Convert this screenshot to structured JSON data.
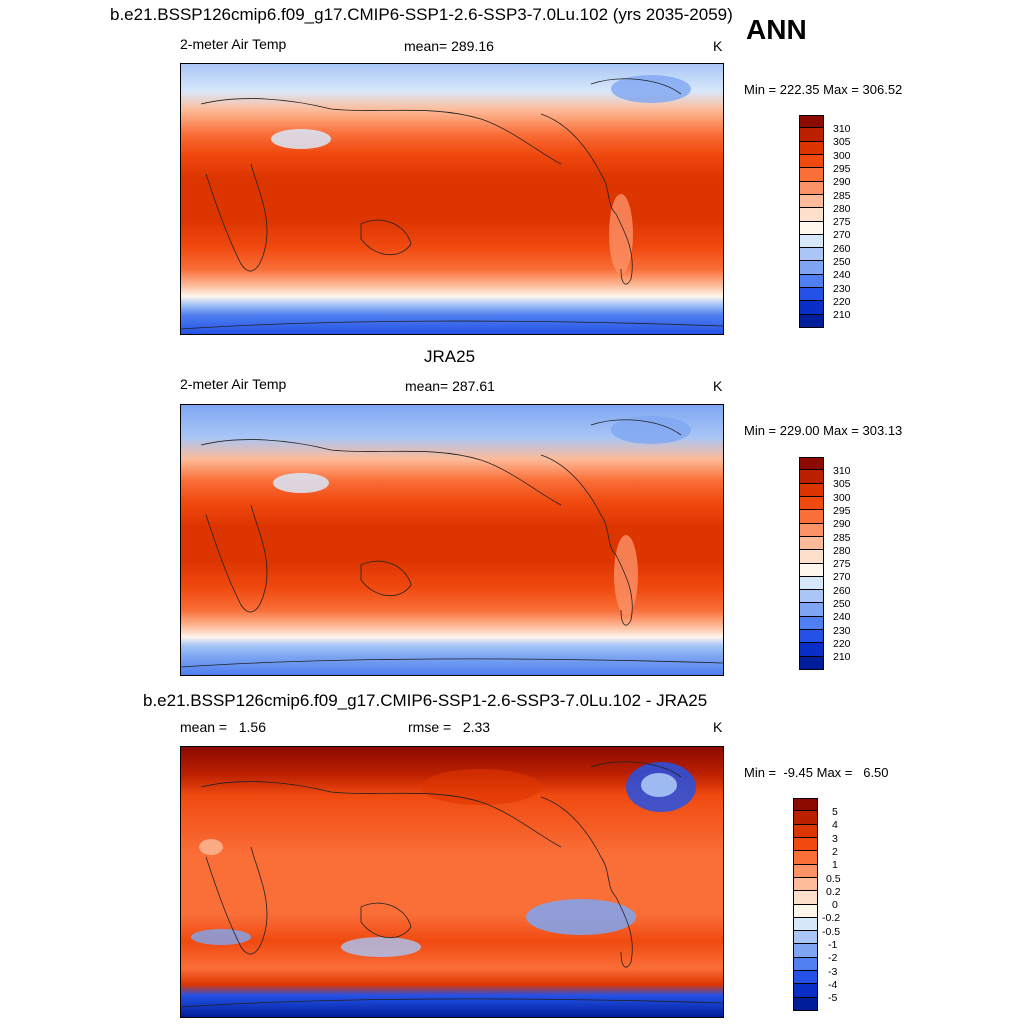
{
  "header": {
    "title": "b.e21.BSSP126cmip6.f09_g17.CMIP6-SSP1-2.6-SSP3-7.0Lu.102 (yrs 2035-2059)",
    "season": "ANN"
  },
  "panels": [
    {
      "title": "",
      "left_label": "2-meter Air Temp",
      "center_label": "mean= 289.16",
      "units": "K",
      "minmax": "Min = 222.35 Max = 306.52",
      "colorbar": {
        "labels": [
          "310",
          "305",
          "300",
          "295",
          "290",
          "285",
          "280",
          "275",
          "270",
          "260",
          "250",
          "240",
          "230",
          "220",
          "210"
        ],
        "colors": [
          "#8c0a00",
          "#bb2000",
          "#dd3500",
          "#f04a10",
          "#fa6e38",
          "#fb9268",
          "#fdbb99",
          "#fde0cc",
          "#fff6ec",
          "#d8e8fb",
          "#a9c6f6",
          "#7ea6f2",
          "#4f7ff0",
          "#2452e6",
          "#0a2fc7",
          "#001d9a"
        ]
      }
    },
    {
      "title": "JRA25",
      "left_label": "2-meter Air Temp",
      "center_label": "mean= 287.61",
      "units": "K",
      "minmax": "Min = 229.00 Max = 303.13",
      "colorbar": {
        "labels": [
          "310",
          "305",
          "300",
          "295",
          "290",
          "285",
          "280",
          "275",
          "270",
          "260",
          "250",
          "240",
          "230",
          "220",
          "210"
        ],
        "colors": [
          "#8c0a00",
          "#bb2000",
          "#dd3500",
          "#f04a10",
          "#fa6e38",
          "#fb9268",
          "#fdbb99",
          "#fde0cc",
          "#fff6ec",
          "#d8e8fb",
          "#a9c6f6",
          "#7ea6f2",
          "#4f7ff0",
          "#2452e6",
          "#0a2fc7",
          "#001d9a"
        ]
      }
    },
    {
      "title": "b.e21.BSSP126cmip6.f09_g17.CMIP6-SSP1-2.6-SSP3-7.0Lu.102 - JRA25",
      "left_label": "mean =   1.56",
      "center_label": "rmse =   2.33",
      "units": "K",
      "minmax": "Min =  -9.45 Max =   6.50",
      "colorbar": {
        "labels": [
          "5",
          "4",
          "3",
          "2",
          "1",
          "0.5",
          "0.2",
          "0",
          "-0.2",
          "-0.5",
          "-1",
          "-2",
          "-3",
          "-4",
          "-5"
        ],
        "colors": [
          "#8c0a00",
          "#bb2000",
          "#dd3500",
          "#f04a10",
          "#fa6e38",
          "#fb9268",
          "#fdbb99",
          "#fde0cc",
          "#fff6ec",
          "#d8e8fb",
          "#a9c6f6",
          "#7ea6f2",
          "#4f7ff0",
          "#2452e6",
          "#0a2fc7",
          "#001d9a"
        ]
      }
    }
  ]
}
